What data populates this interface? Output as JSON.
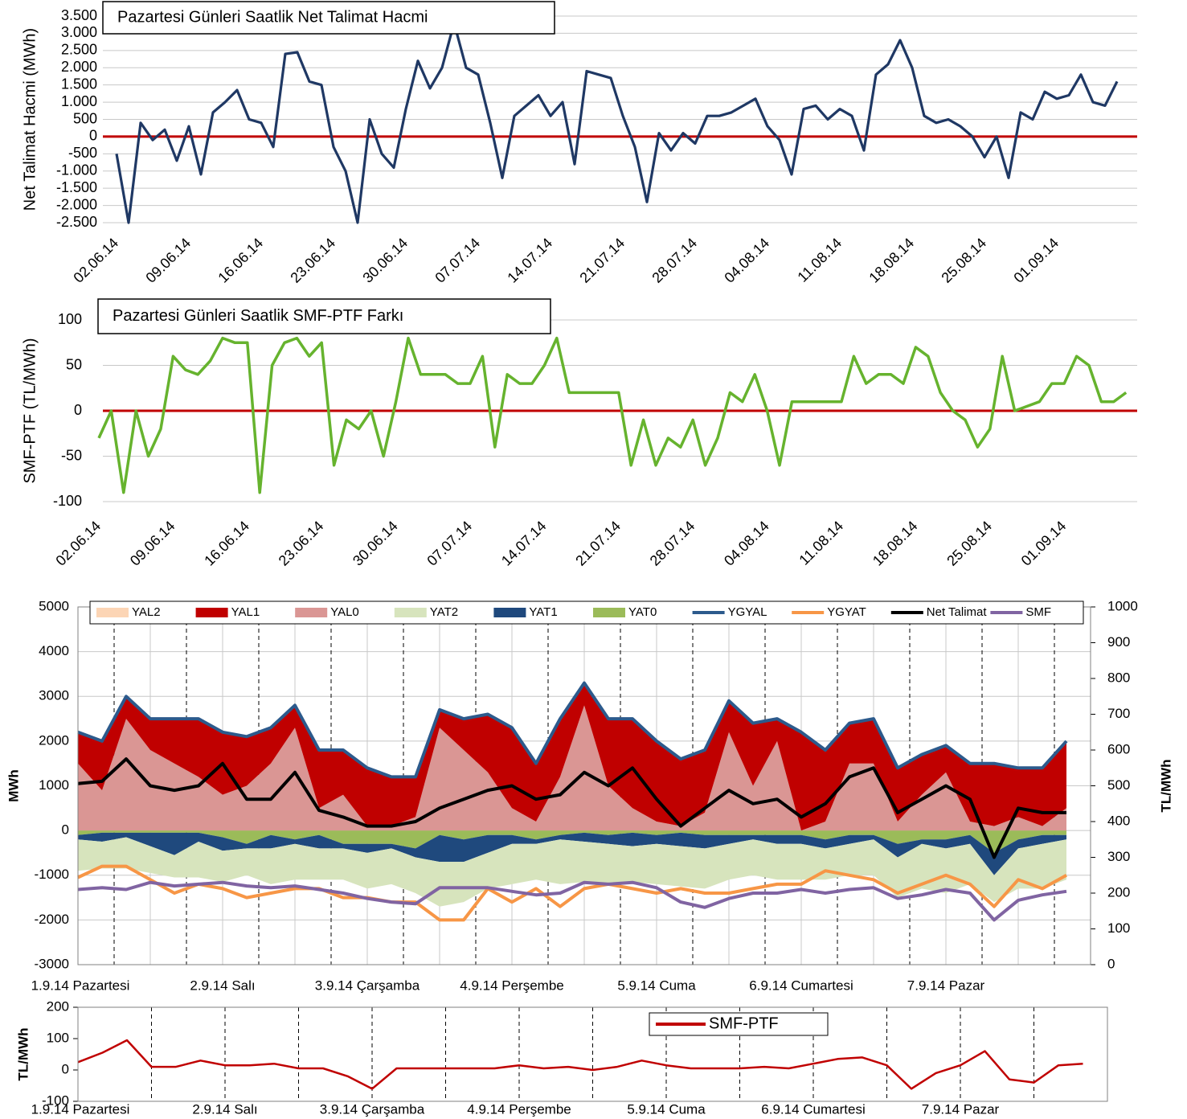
{
  "chart_data": [
    {
      "type": "line",
      "title": "Pazartesi Günleri Saatlik Net Talimat Hacmi",
      "y_label": "Net Talimat Hacmi (MWh)",
      "color": "#1f3864",
      "zero_line_color": "#c00000",
      "grid": true,
      "categories": [
        "02.06.14",
        null,
        null,
        null,
        null,
        null,
        "09.06.14",
        null,
        null,
        null,
        null,
        null,
        "16.06.14",
        null,
        null,
        null,
        null,
        null,
        "23.06.14",
        null,
        null,
        null,
        null,
        null,
        "30.06.14",
        null,
        null,
        null,
        null,
        null,
        "07.07.14",
        null,
        null,
        null,
        null,
        null,
        "14.07.14",
        null,
        null,
        null,
        null,
        null,
        "21.07.14",
        null,
        null,
        null,
        null,
        null,
        "28.07.14",
        null,
        null,
        null,
        null,
        null,
        "04.08.14",
        null,
        null,
        null,
        null,
        null,
        "11.08.14",
        null,
        null,
        null,
        null,
        null,
        "18.08.14",
        null,
        null,
        null,
        null,
        null,
        "25.08.14",
        null,
        null,
        null,
        null,
        null,
        "01.09.14",
        null,
        null,
        null,
        null,
        null
      ],
      "values": [
        -500,
        -2500,
        400,
        -100,
        200,
        -700,
        300,
        -1100,
        700,
        1000,
        1350,
        500,
        400,
        -300,
        2400,
        2450,
        1600,
        1500,
        -300,
        -1000,
        -2500,
        500,
        -500,
        -900,
        800,
        2200,
        1400,
        2000,
        3300,
        2000,
        1800,
        400,
        -1200,
        600,
        900,
        1200,
        600,
        1000,
        -800,
        1900,
        1800,
        1700,
        600,
        -300,
        -1900,
        100,
        -400,
        100,
        -200,
        600,
        600,
        700,
        900,
        1100,
        300,
        -100,
        -1100,
        800,
        900,
        500,
        800,
        600,
        -400,
        1800,
        2100,
        2800,
        2000,
        600,
        400,
        500,
        300,
        0,
        -600,
        0,
        -1200,
        700,
        500,
        1300,
        1100,
        1200,
        1800,
        1000,
        900,
        1600
      ],
      "ylim": [
        -2500,
        3500
      ],
      "yticks": [
        {
          "value": 3500,
          "label": "3.500"
        },
        {
          "value": 3000,
          "label": "3.000"
        },
        {
          "value": 2500,
          "label": "2.500"
        },
        {
          "value": 2000,
          "label": "2.000"
        },
        {
          "value": 1500,
          "label": "1.500"
        },
        {
          "value": 1000,
          "label": "1.000"
        },
        500,
        0,
        -500,
        {
          "value": -1000,
          "label": "-1.000"
        },
        {
          "value": -1500,
          "label": "-1.500"
        },
        {
          "value": -2000,
          "label": "-2.000"
        },
        {
          "value": -2500,
          "label": "-2.500"
        }
      ]
    },
    {
      "type": "line",
      "title": "Pazartesi Günleri Saatlik SMF-PTF Farkı",
      "y_label": "SMF-PTF (TL/MWh)",
      "color": "#66b32e",
      "zero_line_color": "#c00000",
      "grid": true,
      "categories": [
        "02.06.14",
        null,
        null,
        null,
        null,
        null,
        "09.06.14",
        null,
        null,
        null,
        null,
        null,
        "16.06.14",
        null,
        null,
        null,
        null,
        null,
        "23.06.14",
        null,
        null,
        null,
        null,
        null,
        "30.06.14",
        null,
        null,
        null,
        null,
        null,
        "07.07.14",
        null,
        null,
        null,
        null,
        null,
        "14.07.14",
        null,
        null,
        null,
        null,
        null,
        "21.07.14",
        null,
        null,
        null,
        null,
        null,
        "28.07.14",
        null,
        null,
        null,
        null,
        null,
        "04.08.14",
        null,
        null,
        null,
        null,
        null,
        "11.08.14",
        null,
        null,
        null,
        null,
        null,
        "18.08.14",
        null,
        null,
        null,
        null,
        null,
        "25.08.14",
        null,
        null,
        null,
        null,
        null,
        "01.09.14",
        null,
        null,
        null,
        null,
        null
      ],
      "values": [
        -30,
        0,
        -90,
        0,
        -50,
        -20,
        60,
        45,
        40,
        55,
        80,
        75,
        75,
        -90,
        50,
        75,
        80,
        60,
        75,
        -60,
        -10,
        -20,
        0,
        -50,
        10,
        80,
        40,
        40,
        40,
        30,
        30,
        60,
        -40,
        40,
        30,
        30,
        50,
        80,
        20,
        20,
        20,
        20,
        20,
        -60,
        -10,
        -60,
        -30,
        -40,
        -10,
        -60,
        -30,
        20,
        10,
        40,
        0,
        -60,
        10,
        10,
        10,
        10,
        10,
        60,
        30,
        40,
        40,
        30,
        70,
        60,
        20,
        0,
        -10,
        -40,
        -20,
        60,
        0,
        5,
        10,
        30,
        30,
        60,
        50,
        10,
        10,
        20
      ],
      "ylim": [
        -100,
        100
      ],
      "yticks": [
        100,
        50,
        0,
        -50,
        -100
      ]
    },
    {
      "type": "area",
      "y_label": "MWh",
      "y2_label": "TL/MWh",
      "grid": true,
      "categories": [
        "1.9.14 Pazartesi",
        null,
        null,
        null,
        null,
        null,
        "2.9.14 Salı",
        null,
        null,
        null,
        null,
        null,
        "3.9.14 Çarşamba",
        null,
        null,
        null,
        null,
        null,
        "4.9.14 Perşembe",
        null,
        null,
        null,
        null,
        null,
        "5.9.14 Cuma",
        null,
        null,
        null,
        null,
        null,
        "6.9.14 Cumartesi",
        null,
        null,
        null,
        null,
        null,
        "7.9.14 Pazar",
        null,
        null,
        null,
        null,
        null
      ],
      "series": [
        {
          "name": "YAL2",
          "type": "area",
          "color": "#fcd5b5",
          "values": [
            0,
            0,
            0,
            0,
            0,
            0,
            0,
            0,
            0,
            0,
            0,
            0,
            0,
            0,
            0,
            0,
            0,
            0,
            0,
            0,
            0,
            0,
            0,
            0,
            0,
            0,
            0,
            0,
            0,
            0,
            0,
            0,
            0,
            0,
            0,
            0,
            0,
            0,
            0,
            0,
            0,
            0
          ]
        },
        {
          "name": "YAL1",
          "type": "area",
          "color": "#c00000",
          "values": [
            700,
            1100,
            500,
            700,
            1000,
            1300,
            1400,
            1100,
            800,
            500,
            1300,
            1000,
            1300,
            1100,
            900,
            400,
            700,
            1300,
            1800,
            1300,
            1300,
            500,
            1500,
            2000,
            1800,
            1500,
            1400,
            700,
            1400,
            500,
            2200,
            1600,
            900,
            1000,
            1200,
            900,
            600,
            1300,
            1400,
            1100,
            1300,
            1500
          ]
        },
        {
          "name": "YAL0",
          "type": "area",
          "color": "#da9694",
          "values": [
            1500,
            900,
            2500,
            1800,
            1500,
            1200,
            800,
            1000,
            1500,
            2300,
            500,
            800,
            100,
            100,
            300,
            2300,
            1800,
            1300,
            500,
            200,
            1200,
            2800,
            1000,
            500,
            200,
            100,
            400,
            2200,
            1000,
            2000,
            0,
            200,
            1500,
            1500,
            200,
            800,
            1300,
            200,
            100,
            300,
            100,
            500
          ]
        },
        {
          "name": "YAT2",
          "type": "area",
          "color": "#d7e4bd",
          "values": [
            -700,
            -600,
            -700,
            -600,
            -500,
            -800,
            -700,
            -600,
            -800,
            -800,
            -700,
            -700,
            -800,
            -800,
            -800,
            -1000,
            -900,
            -800,
            -900,
            -800,
            -1000,
            -900,
            -900,
            -800,
            -900,
            -900,
            -900,
            -800,
            -800,
            -800,
            -800,
            -700,
            -700,
            -800,
            -900,
            -1000,
            -1000,
            -900,
            -600,
            -900,
            -1000,
            -900
          ]
        },
        {
          "name": "YAT1",
          "type": "area",
          "color": "#1f497d",
          "values": [
            -100,
            -200,
            -100,
            -300,
            -500,
            -200,
            -300,
            -100,
            -300,
            -100,
            -300,
            -100,
            -200,
            -100,
            -200,
            -600,
            -500,
            -400,
            -200,
            -100,
            -100,
            -200,
            -200,
            -300,
            -200,
            -300,
            -300,
            -200,
            -100,
            -200,
            -200,
            -200,
            -200,
            -100,
            -300,
            -100,
            -200,
            -200,
            -500,
            -200,
            -200,
            -100
          ]
        },
        {
          "name": "YAT0",
          "type": "area",
          "color": "#9bbb59",
          "values": [
            -100,
            -50,
            -50,
            -50,
            -50,
            -50,
            -150,
            -300,
            -100,
            -200,
            -100,
            -300,
            -300,
            -300,
            -400,
            -100,
            -200,
            -100,
            -100,
            -200,
            -100,
            -50,
            -100,
            -50,
            -100,
            -50,
            -100,
            -100,
            -100,
            -100,
            -100,
            -200,
            -100,
            -100,
            -300,
            -200,
            -200,
            -100,
            -500,
            -200,
            -100,
            -100
          ]
        },
        {
          "name": "YGYAL",
          "type": "line",
          "color": "#2c5a8c",
          "values": [
            2200,
            2000,
            3000,
            2500,
            2500,
            2500,
            2200,
            2100,
            2300,
            2800,
            1800,
            1800,
            1400,
            1200,
            1200,
            2700,
            2500,
            2600,
            2300,
            1500,
            2500,
            3300,
            2500,
            2500,
            2000,
            1600,
            1800,
            2900,
            2400,
            2500,
            2200,
            1800,
            2400,
            2500,
            1400,
            1700,
            1900,
            1500,
            1500,
            1400,
            1400,
            2000
          ]
        },
        {
          "name": "YGYAT",
          "type": "line",
          "color": "#f79646",
          "values": [
            -1050,
            -800,
            -800,
            -1100,
            -1400,
            -1200,
            -1300,
            -1500,
            -1400,
            -1300,
            -1300,
            -1500,
            -1500,
            -1600,
            -1600,
            -2000,
            -2000,
            -1300,
            -1600,
            -1300,
            -1700,
            -1300,
            -1200,
            -1300,
            -1400,
            -1300,
            -1400,
            -1400,
            -1300,
            -1200,
            -1200,
            -900,
            -1000,
            -1100,
            -1400,
            -1200,
            -1000,
            -1200,
            -1700,
            -1100,
            -1300,
            -1000
          ]
        },
        {
          "name": "Net Talimat",
          "type": "line",
          "color": "#000000",
          "values": [
            1050,
            1100,
            1600,
            1000,
            900,
            1000,
            1500,
            700,
            700,
            1300,
            450,
            300,
            100,
            100,
            200,
            500,
            700,
            900,
            1000,
            700,
            800,
            1300,
            1000,
            1400,
            700,
            100,
            500,
            900,
            600,
            700,
            300,
            600,
            1200,
            1400,
            400,
            700,
            1000,
            700,
            -600,
            500,
            400,
            400
          ]
        },
        {
          "name": "SMF",
          "type": "line",
          "axis": "y2",
          "color": "#8064a2",
          "values": [
            210,
            215,
            210,
            230,
            220,
            225,
            230,
            220,
            215,
            220,
            210,
            200,
            185,
            175,
            170,
            215,
            215,
            215,
            205,
            195,
            200,
            230,
            225,
            230,
            215,
            175,
            160,
            185,
            200,
            200,
            210,
            200,
            210,
            215,
            185,
            195,
            210,
            200,
            125,
            180,
            195,
            205
          ]
        }
      ],
      "ylim": [
        -3000,
        5000
      ],
      "yticks": [
        5000,
        4000,
        3000,
        2000,
        1000,
        0,
        -1000,
        -2000,
        -3000
      ],
      "y2lim": [
        0,
        1000
      ],
      "y2ticks": [
        1000,
        900,
        800,
        700,
        600,
        500,
        400,
        300,
        200,
        100,
        0
      ]
    },
    {
      "type": "line",
      "y_label": "TL/MWh",
      "grid": false,
      "categories": [
        "1.9.14 Pazartesi",
        null,
        null,
        null,
        null,
        null,
        "2.9.14 Salı",
        null,
        null,
        null,
        null,
        null,
        "3.9.14 Çarşamba",
        null,
        null,
        null,
        null,
        null,
        "4.9.14 Perşembe",
        null,
        null,
        null,
        null,
        null,
        "5.9.14 Cuma",
        null,
        null,
        null,
        null,
        null,
        "6.9.14 Cumartesi",
        null,
        null,
        null,
        null,
        null,
        "7.9.14 Pazar",
        null,
        null,
        null,
        null,
        null
      ],
      "series": [
        {
          "name": "SMF-PTF",
          "type": "line",
          "color": "#c00000",
          "values": [
            25,
            55,
            95,
            10,
            10,
            30,
            15,
            15,
            20,
            5,
            5,
            -20,
            -60,
            5,
            5,
            5,
            5,
            5,
            15,
            5,
            10,
            0,
            10,
            30,
            15,
            5,
            5,
            5,
            10,
            5,
            20,
            35,
            40,
            15,
            -60,
            -10,
            15,
            60,
            -30,
            -40,
            15,
            20
          ]
        }
      ],
      "ylim": [
        -100,
        200
      ],
      "yticks": [
        200,
        100,
        0,
        -100
      ]
    }
  ]
}
